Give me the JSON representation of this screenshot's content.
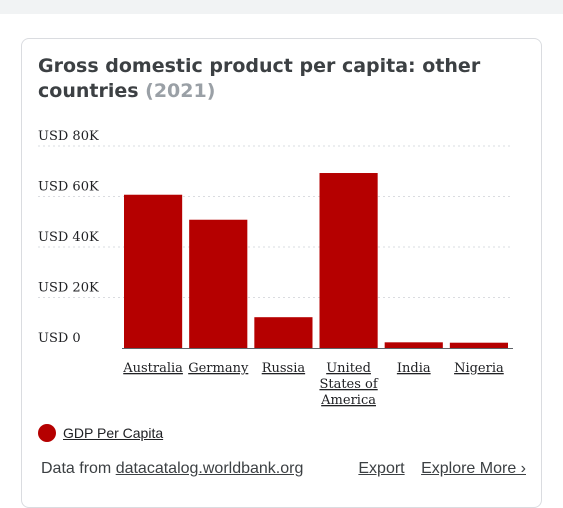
{
  "card": {
    "title": "Gross domestic product per capita: other countries",
    "year": "(2021)"
  },
  "legend": {
    "label": "GDP Per Capita",
    "color": "#b50000"
  },
  "footer": {
    "source_prefix": "Data from ",
    "source_link": "datacatalog.worldbank.org",
    "export_label": "Export",
    "explore_label": "Explore More ›"
  },
  "chart_data": {
    "type": "bar",
    "title": "Gross domestic product per capita: other countries (2021)",
    "categories": [
      [
        "Australia"
      ],
      [
        "Germany"
      ],
      [
        "Russia"
      ],
      [
        "United",
        "States of",
        "America"
      ],
      [
        "India"
      ],
      [
        "Nigeria"
      ]
    ],
    "series": [
      {
        "name": "GDP Per Capita",
        "color": "#b50000",
        "values": [
          60700,
          50800,
          12200,
          69300,
          2250,
          2100
        ]
      }
    ],
    "y_ticks": [
      {
        "value": 0,
        "label": "USD 0"
      },
      {
        "value": 20000,
        "label": "USD 20K"
      },
      {
        "value": 40000,
        "label": "USD 40K"
      },
      {
        "value": 60000,
        "label": "USD 60K"
      },
      {
        "value": 80000,
        "label": "USD 80K"
      }
    ],
    "ylim": [
      0,
      80000
    ],
    "grid": true,
    "legend_position": "bottom-left"
  }
}
